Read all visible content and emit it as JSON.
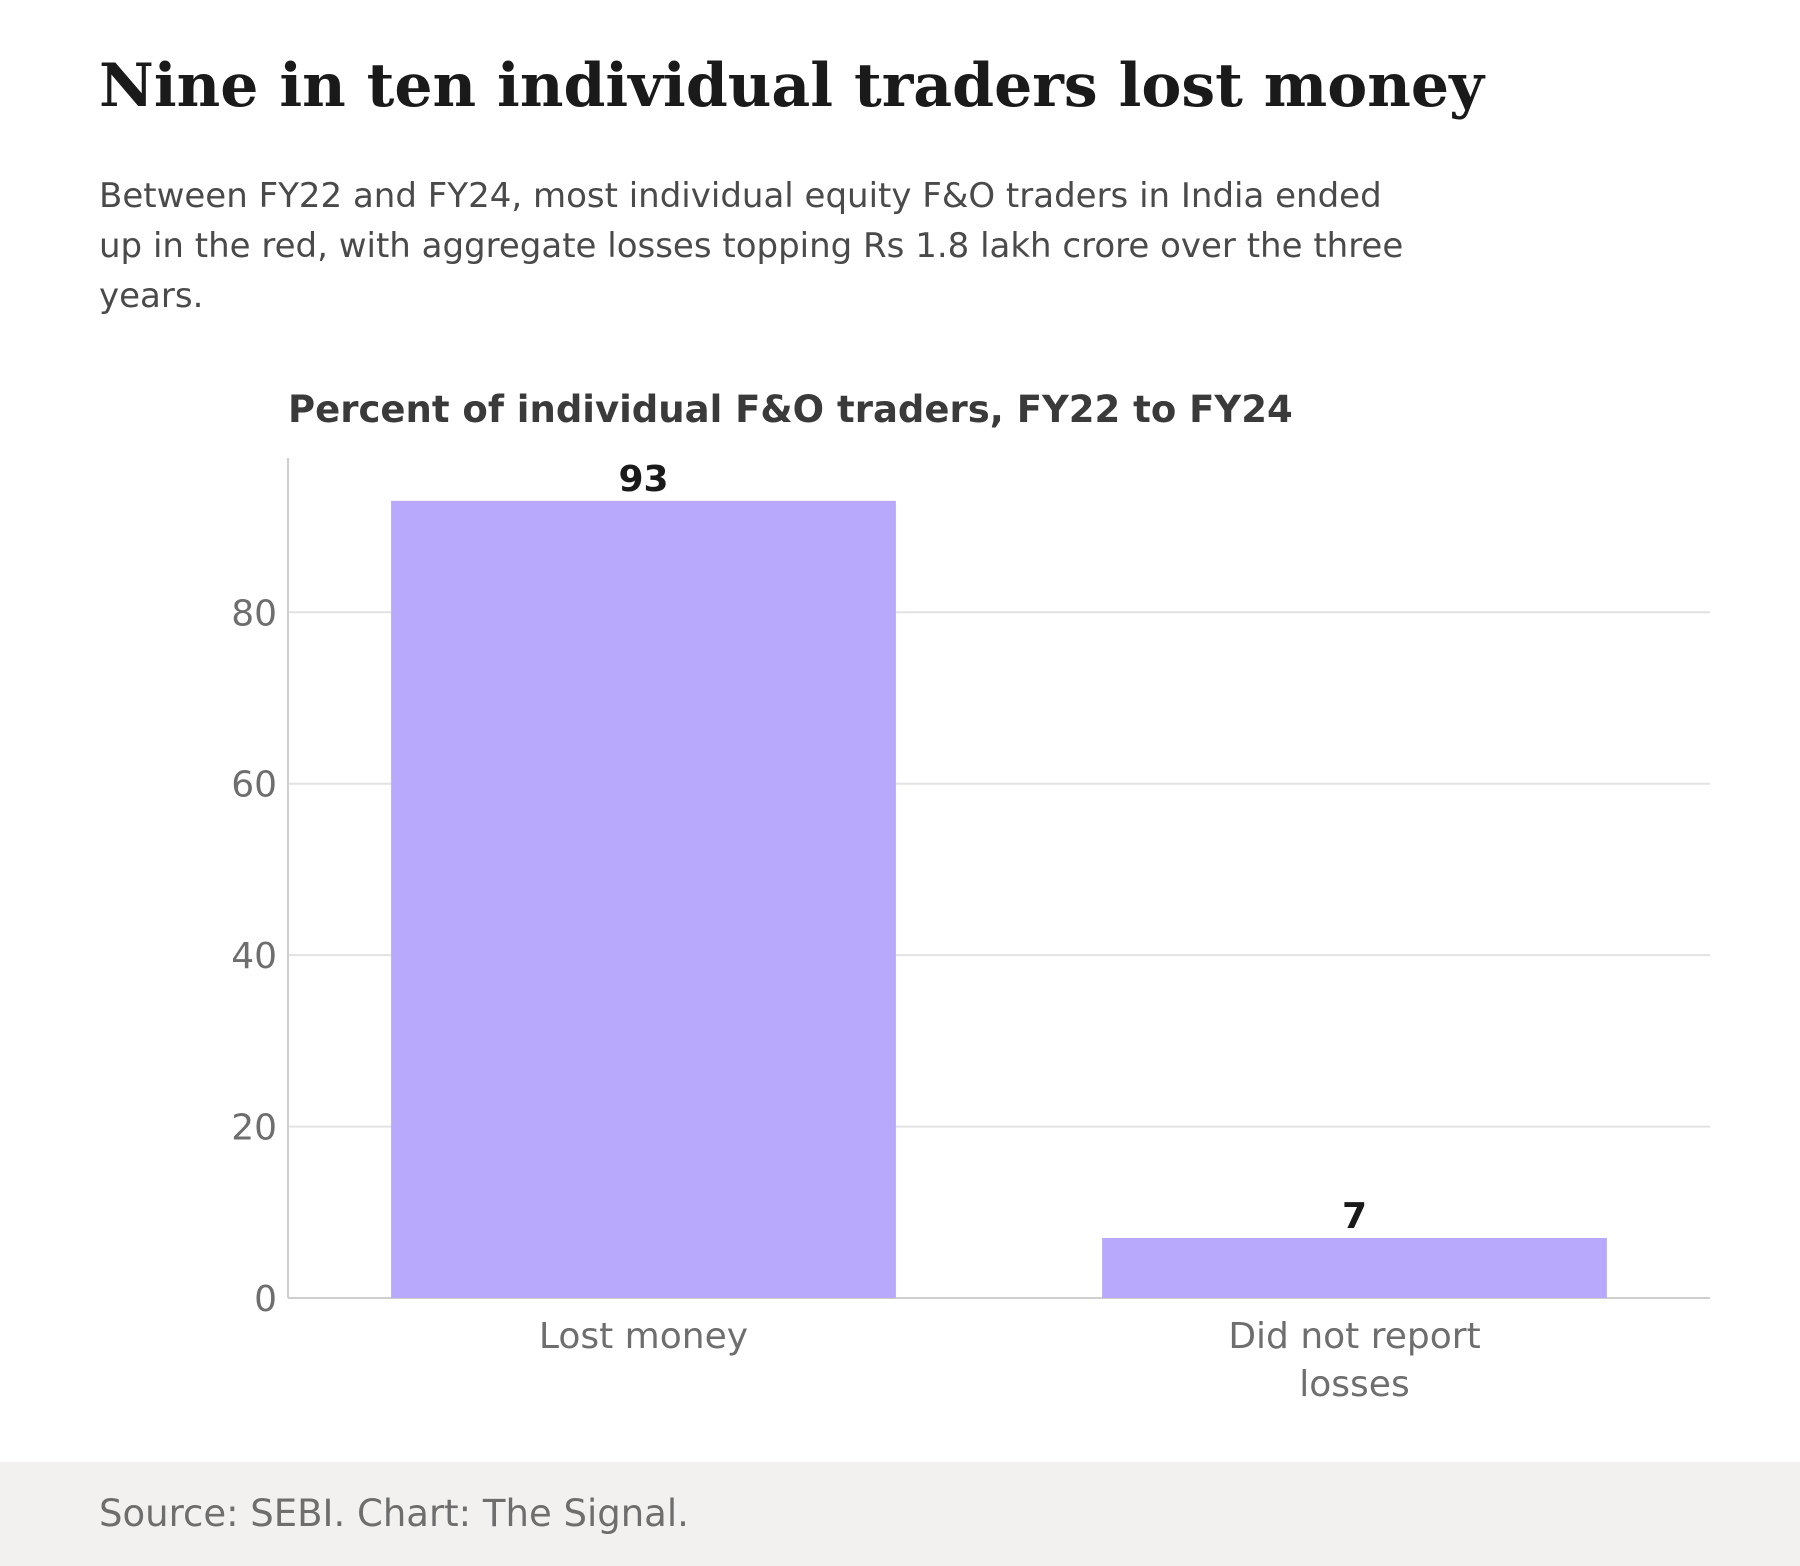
{
  "header": {
    "title": "Nine in ten individual traders lost money",
    "subtitle": "Between FY22 and FY24, most individual equity F&O traders in India ended up in the red, with aggregate losses topping Rs 1.8 lakh crore over the three years."
  },
  "chart_data": {
    "type": "bar",
    "title": "Percent of individual F&O traders, FY22 to FY24",
    "categories": [
      "Lost money",
      "Did not report losses"
    ],
    "category_lines": [
      [
        "Lost money"
      ],
      [
        "Did not report",
        "losses"
      ]
    ],
    "values": [
      93,
      7
    ],
    "data_labels": [
      "93",
      "7"
    ],
    "xlabel": "",
    "ylabel": "",
    "ylim": [
      0,
      98
    ],
    "yticks": [
      0,
      20,
      40,
      60,
      80
    ],
    "grid": true,
    "bar_color": "#b8a9fd",
    "gridline_color": "#e2e2e2",
    "axis_color": "#cfcfcf",
    "tick_label_color": "#6e6e6e",
    "data_label_color": "#1a1a1a"
  },
  "footer": {
    "source": "Source: SEBI. Chart: The Signal."
  }
}
